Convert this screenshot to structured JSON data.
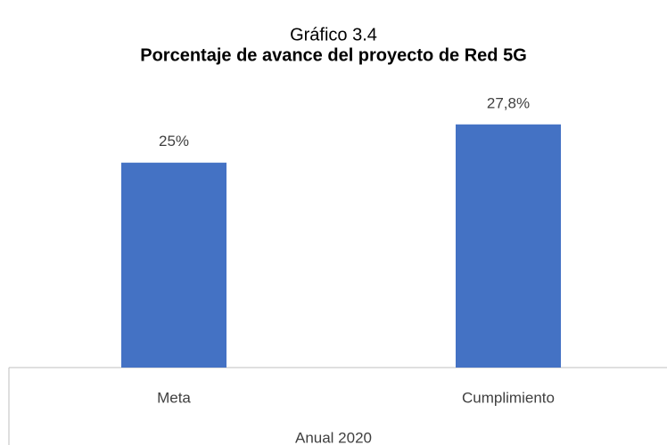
{
  "chart_data": {
    "type": "bar",
    "title": "Gráfico 3.4",
    "subtitle": "Porcentaje de avance del proyecto de Red 5G",
    "categories": [
      "Meta",
      "Cumplimiento"
    ],
    "values": [
      25,
      27.8
    ],
    "value_labels": [
      "25%",
      "27,8%"
    ],
    "color": "#4472c4",
    "xlabel": "Anual 2020",
    "ylim": [
      10,
      30
    ]
  }
}
